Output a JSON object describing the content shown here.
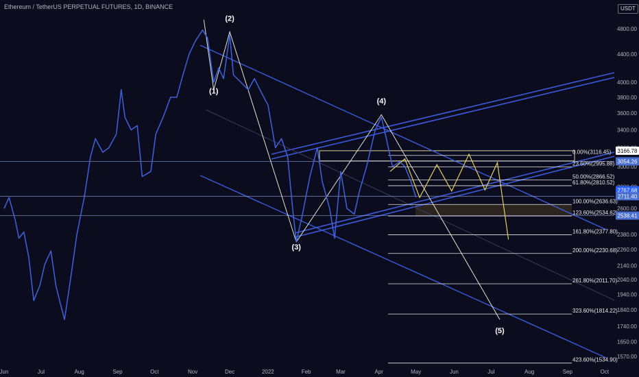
{
  "chart": {
    "title": "Ethereum / TetherUS PERPETUAL FUTURES, 1D, BINANCE",
    "currency": "USDT"
  },
  "chart_data": {
    "type": "line",
    "series": [
      {
        "points": [
          [
            "2021-06-01",
            2600
          ],
          [
            "2021-06-05",
            2700
          ],
          [
            "2021-06-10",
            2500
          ],
          [
            "2021-06-13",
            2350
          ],
          [
            "2021-06-17",
            2400
          ],
          [
            "2021-06-21",
            2200
          ],
          [
            "2021-06-25",
            1900
          ],
          [
            "2021-06-30",
            2000
          ],
          [
            "2021-07-04",
            2150
          ],
          [
            "2021-07-09",
            2250
          ],
          [
            "2021-07-13",
            2000
          ],
          [
            "2021-07-16",
            1900
          ],
          [
            "2021-07-20",
            1780
          ],
          [
            "2021-07-25",
            2050
          ],
          [
            "2021-07-30",
            2380
          ],
          [
            "2021-08-05",
            2700
          ],
          [
            "2021-08-10",
            3100
          ],
          [
            "2021-08-14",
            3300
          ],
          [
            "2021-08-20",
            3150
          ],
          [
            "2021-08-25",
            3200
          ],
          [
            "2021-08-31",
            3350
          ],
          [
            "2021-09-04",
            3900
          ],
          [
            "2021-09-07",
            3550
          ],
          [
            "2021-09-12",
            3400
          ],
          [
            "2021-09-17",
            3450
          ],
          [
            "2021-09-21",
            2900
          ],
          [
            "2021-09-28",
            2950
          ],
          [
            "2021-10-02",
            3350
          ],
          [
            "2021-10-08",
            3550
          ],
          [
            "2021-10-14",
            3800
          ],
          [
            "2021-10-19",
            3800
          ],
          [
            "2021-10-24",
            4100
          ],
          [
            "2021-10-29",
            4400
          ],
          [
            "2021-11-03",
            4600
          ],
          [
            "2021-11-09",
            4780
          ],
          [
            "2021-11-13",
            4650
          ],
          [
            "2021-11-18",
            4000
          ],
          [
            "2021-11-22",
            4200
          ],
          [
            "2021-11-26",
            4050
          ],
          [
            "2021-12-01",
            4700
          ],
          [
            "2021-12-04",
            4100
          ],
          [
            "2021-12-10",
            4000
          ],
          [
            "2021-12-16",
            3900
          ],
          [
            "2021-12-21",
            4050
          ],
          [
            "2021-12-27",
            3850
          ],
          [
            "2022-01-01",
            3700
          ],
          [
            "2022-01-07",
            3200
          ],
          [
            "2022-01-12",
            3300
          ],
          [
            "2022-01-17",
            3100
          ],
          [
            "2022-01-21",
            2600
          ],
          [
            "2022-01-24",
            2320
          ],
          [
            "2022-01-29",
            2550
          ],
          [
            "2022-02-04",
            2900
          ],
          [
            "2022-02-10",
            3200
          ],
          [
            "2022-02-14",
            2850
          ],
          [
            "2022-02-20",
            2600
          ],
          [
            "2022-02-24",
            2350
          ],
          [
            "2022-03-01",
            2950
          ],
          [
            "2022-03-06",
            2600
          ],
          [
            "2022-03-12",
            2550
          ],
          [
            "2022-03-16",
            2750
          ],
          [
            "2022-03-22",
            3000
          ],
          [
            "2022-03-29",
            3400
          ],
          [
            "2022-04-03",
            3550
          ],
          [
            "2022-04-07",
            3300
          ],
          [
            "2022-04-12",
            3000
          ],
          [
            "2022-04-18",
            3050
          ],
          [
            "2022-04-22",
            3000
          ],
          [
            "2022-04-27",
            2850
          ],
          [
            "2022-05-01",
            2700
          ]
        ]
      }
    ],
    "y_ticks": [
      4800,
      4400,
      4000,
      3800,
      3600,
      3400,
      3200,
      3000,
      2800,
      2600,
      2380,
      2260,
      2140,
      2040,
      1940,
      1840,
      1740,
      1650,
      1570
    ],
    "x_ticks": [
      {
        "date": "2021-06-01",
        "label": "Jun"
      },
      {
        "date": "2021-07-01",
        "label": "Jul"
      },
      {
        "date": "2021-08-01",
        "label": "Aug"
      },
      {
        "date": "2021-09-01",
        "label": "Sep"
      },
      {
        "date": "2021-10-01",
        "label": "Oct"
      },
      {
        "date": "2021-11-01",
        "label": "Nov"
      },
      {
        "date": "2021-12-01",
        "label": "Dec"
      },
      {
        "date": "2022-01-01",
        "label": "2022"
      },
      {
        "date": "2022-02-01",
        "label": "Feb"
      },
      {
        "date": "2022-03-01",
        "label": "Mar"
      },
      {
        "date": "2022-04-01",
        "label": "Apr"
      },
      {
        "date": "2022-05-01",
        "label": "May"
      },
      {
        "date": "2022-06-01",
        "label": "Jun"
      },
      {
        "date": "2022-07-01",
        "label": "Jul"
      },
      {
        "date": "2022-08-01",
        "label": "Aug"
      },
      {
        "date": "2022-09-01",
        "label": "Sep"
      },
      {
        "date": "2022-10-01",
        "label": "Oct"
      }
    ],
    "x_range": [
      "2021-06-01",
      "2022-10-20"
    ],
    "y_log_scale": true,
    "grid": false,
    "fibonacci_levels": [
      {
        "label": "0.00%(3116.45)",
        "value": 3116.45
      },
      {
        "label": "23.60%(2995.88)",
        "value": 2995.88
      },
      {
        "label": "50.00%(2866.52)",
        "value": 2866.52
      },
      {
        "label": "61.80%(2810.52)",
        "value": 2810.52
      },
      {
        "label": "100.00%(2636.63)",
        "value": 2636.63
      },
      {
        "label": "123.60%(2534.62)",
        "value": 2534.62
      },
      {
        "label": "161.80%(2377.80)",
        "value": 2377.8
      },
      {
        "label": "200.00%(2230.68)",
        "value": 2230.68
      },
      {
        "label": "261.80%(2011.70)",
        "value": 2011.7
      },
      {
        "label": "323.60%(1814.22)",
        "value": 1814.22
      },
      {
        "label": "423.60%(1534.90)",
        "value": 1534.9
      }
    ],
    "price_tags": [
      {
        "label": "3166.78",
        "value": 3166.78,
        "color": "#ffffff",
        "text_color": "#000000"
      },
      {
        "label": "3054.26",
        "value": 3054.26,
        "color": "#4a6fd0",
        "text_color": "#ffffff"
      },
      {
        "label": "2767.68",
        "value": 2767.68,
        "color": "#2962ff",
        "text_color": "#ffffff"
      },
      {
        "label": "2711.40",
        "value": 2711.4,
        "color": "#4a6fd0",
        "text_color": "#ffffff"
      },
      {
        "label": "2538.41",
        "value": 2538.41,
        "color": "#4a6fd0",
        "text_color": "#ffffff"
      }
    ],
    "horizontal_lines": [
      3054.26,
      2711.4,
      2538.41
    ],
    "wave_labels": [
      {
        "label": "(1)",
        "date": "2021-11-18",
        "value": 3850
      },
      {
        "label": "(2)",
        "date": "2021-12-01",
        "value": 4930
      },
      {
        "label": "(3)",
        "date": "2022-01-24",
        "value": 2260
      },
      {
        "label": "(4)",
        "date": "2022-04-03",
        "value": 3720
      },
      {
        "label": "(5)",
        "date": "2022-07-08",
        "value": 1700
      }
    ],
    "wave_path": [
      [
        "2021-11-10",
        4950
      ],
      [
        "2021-11-18",
        3900
      ],
      [
        "2021-12-01",
        4750
      ],
      [
        "2022-01-24",
        2320
      ],
      [
        "2022-04-03",
        3580
      ],
      [
        "2022-07-08",
        1780
      ]
    ],
    "projection_path": [
      [
        "2022-04-10",
        2950
      ],
      [
        "2022-04-22",
        3080
      ],
      [
        "2022-05-04",
        2700
      ],
      [
        "2022-05-18",
        3020
      ],
      [
        "2022-05-30",
        2760
      ],
      [
        "2022-06-13",
        3130
      ],
      [
        "2022-06-26",
        2770
      ],
      [
        "2022-07-06",
        3040
      ],
      [
        "2022-07-15",
        2340
      ]
    ]
  }
}
